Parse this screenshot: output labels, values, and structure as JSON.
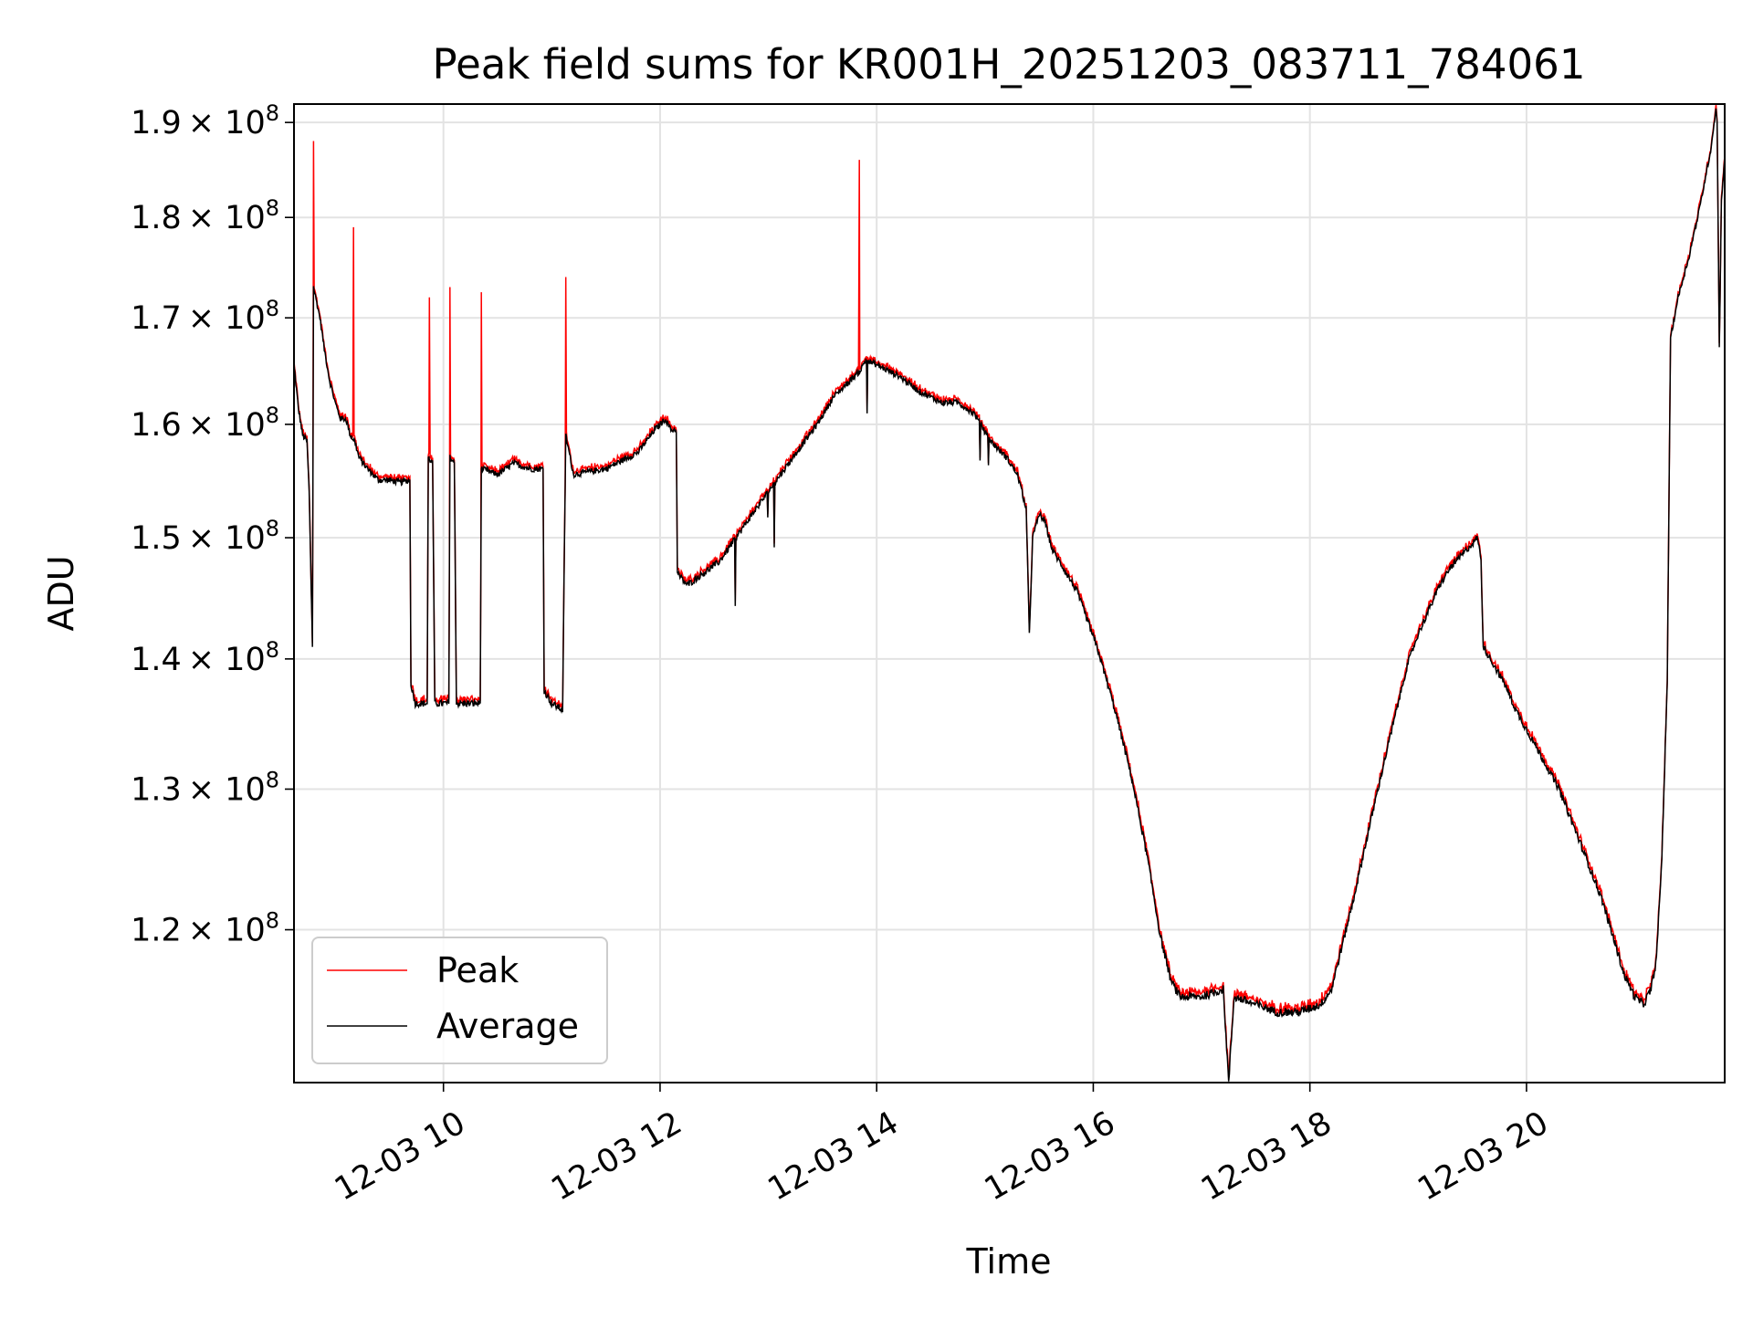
{
  "chart_data": {
    "type": "line",
    "title": "Peak field sums for KR001H_20251203_083711_784061",
    "xlabel": "Time",
    "ylabel": "ADU",
    "yscale": "log",
    "grid": true,
    "legend_position": "lower-left",
    "xlim_hours": [
      8.62,
      21.83
    ],
    "ylim": [
      110000000,
      192000000
    ],
    "x_ticks": [
      {
        "hour": 10,
        "label": "12-03 10"
      },
      {
        "hour": 12,
        "label": "12-03 12"
      },
      {
        "hour": 14,
        "label": "12-03 14"
      },
      {
        "hour": 16,
        "label": "12-03 16"
      },
      {
        "hour": 18,
        "label": "12-03 18"
      },
      {
        "hour": 20,
        "label": "12-03 20"
      }
    ],
    "y_ticks": [
      {
        "value": 120000000,
        "mantissa": "1.2",
        "exponent": "8"
      },
      {
        "value": 130000000,
        "mantissa": "1.3",
        "exponent": "8"
      },
      {
        "value": 140000000,
        "mantissa": "1.4",
        "exponent": "8"
      },
      {
        "value": 150000000,
        "mantissa": "1.5",
        "exponent": "8"
      },
      {
        "value": 160000000,
        "mantissa": "1.6",
        "exponent": "8"
      },
      {
        "value": 170000000,
        "mantissa": "1.7",
        "exponent": "8"
      },
      {
        "value": 180000000,
        "mantissa": "1.8",
        "exponent": "8"
      },
      {
        "value": 190000000,
        "mantissa": "1.9",
        "exponent": "8"
      }
    ],
    "tick_multiplier": "× 10",
    "units_scale": 1000000,
    "series": [
      {
        "name": "Peak",
        "color": "#ff0000",
        "spikes": [
          {
            "hour": 8.8,
            "value": 188
          },
          {
            "hour": 9.17,
            "value": 179
          },
          {
            "hour": 9.87,
            "value": 172
          },
          {
            "hour": 10.06,
            "value": 173
          },
          {
            "hour": 10.35,
            "value": 172.5
          },
          {
            "hour": 11.13,
            "value": 174
          },
          {
            "hour": 13.84,
            "value": 186
          }
        ]
      },
      {
        "name": "Average",
        "color": "#000000",
        "values_millions": [
          [
            8.62,
            165.5
          ],
          [
            8.66,
            161.5
          ],
          [
            8.7,
            159
          ],
          [
            8.74,
            158.5
          ],
          [
            8.76,
            154
          ],
          [
            8.79,
            141
          ],
          [
            8.8,
            173
          ],
          [
            8.86,
            170
          ],
          [
            8.9,
            167
          ],
          [
            8.95,
            164
          ],
          [
            9.0,
            162
          ],
          [
            9.05,
            160.5
          ],
          [
            9.1,
            160.5
          ],
          [
            9.14,
            159
          ],
          [
            9.18,
            158.5
          ],
          [
            9.22,
            157
          ],
          [
            9.3,
            156
          ],
          [
            9.4,
            155
          ],
          [
            9.5,
            155
          ],
          [
            9.6,
            154.8
          ],
          [
            9.69,
            155
          ],
          [
            9.7,
            138
          ],
          [
            9.74,
            136.5
          ],
          [
            9.85,
            136.5
          ],
          [
            9.86,
            157
          ],
          [
            9.9,
            156.5
          ],
          [
            9.92,
            136.5
          ],
          [
            10.05,
            136.5
          ],
          [
            10.06,
            157
          ],
          [
            10.1,
            156.5
          ],
          [
            10.12,
            136.5
          ],
          [
            10.34,
            136.5
          ],
          [
            10.35,
            156
          ],
          [
            10.5,
            155.5
          ],
          [
            10.65,
            156.5
          ],
          [
            10.8,
            156
          ],
          [
            10.92,
            156
          ],
          [
            10.93,
            137.5
          ],
          [
            11.0,
            136.5
          ],
          [
            11.1,
            136
          ],
          [
            11.13,
            159
          ],
          [
            11.2,
            155.5
          ],
          [
            11.5,
            156
          ],
          [
            11.8,
            157.5
          ],
          [
            11.95,
            159.5
          ],
          [
            12.05,
            160.5
          ],
          [
            12.1,
            159.5
          ],
          [
            12.15,
            159.5
          ],
          [
            12.16,
            147
          ],
          [
            12.25,
            146
          ],
          [
            12.4,
            147
          ],
          [
            12.55,
            148
          ],
          [
            12.7,
            150
          ],
          [
            12.85,
            152
          ],
          [
            13.0,
            154
          ],
          [
            13.15,
            156
          ],
          [
            13.3,
            158
          ],
          [
            13.45,
            160
          ],
          [
            13.6,
            162.5
          ],
          [
            13.75,
            164
          ],
          [
            13.85,
            165
          ],
          [
            13.9,
            166
          ],
          [
            14.0,
            165.5
          ],
          [
            14.2,
            164.5
          ],
          [
            14.4,
            163
          ],
          [
            14.6,
            162
          ],
          [
            14.75,
            162
          ],
          [
            14.9,
            161
          ],
          [
            15.05,
            158.5
          ],
          [
            15.2,
            157
          ],
          [
            15.3,
            155.5
          ],
          [
            15.38,
            152.5
          ],
          [
            15.41,
            142
          ],
          [
            15.44,
            150
          ],
          [
            15.5,
            152
          ],
          [
            15.55,
            151.5
          ],
          [
            15.62,
            149
          ],
          [
            15.72,
            147.5
          ],
          [
            15.85,
            145.5
          ],
          [
            15.95,
            143
          ],
          [
            16.05,
            140.5
          ],
          [
            16.2,
            136
          ],
          [
            16.35,
            131
          ],
          [
            16.5,
            125
          ],
          [
            16.62,
            119.5
          ],
          [
            16.72,
            116.5
          ],
          [
            16.8,
            115.5
          ],
          [
            17.0,
            115.5
          ],
          [
            17.2,
            116
          ],
          [
            17.25,
            110
          ],
          [
            17.3,
            115.5
          ],
          [
            17.5,
            115
          ],
          [
            17.7,
            114.5
          ],
          [
            17.9,
            114.5
          ],
          [
            18.1,
            115
          ],
          [
            18.2,
            116
          ],
          [
            18.3,
            119
          ],
          [
            18.4,
            122
          ],
          [
            18.5,
            125.5
          ],
          [
            18.6,
            129
          ],
          [
            18.7,
            132.5
          ],
          [
            18.8,
            136
          ],
          [
            18.9,
            139.5
          ],
          [
            19.0,
            142
          ],
          [
            19.1,
            144
          ],
          [
            19.2,
            146
          ],
          [
            19.3,
            147.5
          ],
          [
            19.4,
            148.5
          ],
          [
            19.5,
            149.5
          ],
          [
            19.55,
            150
          ],
          [
            19.58,
            148
          ],
          [
            19.6,
            141
          ],
          [
            19.7,
            139.5
          ],
          [
            19.8,
            138
          ],
          [
            19.9,
            136
          ],
          [
            20.0,
            134.5
          ],
          [
            20.1,
            133
          ],
          [
            20.2,
            131.5
          ],
          [
            20.3,
            130
          ],
          [
            20.4,
            128
          ],
          [
            20.5,
            126
          ],
          [
            20.6,
            124
          ],
          [
            20.7,
            122
          ],
          [
            20.8,
            119.5
          ],
          [
            20.9,
            117
          ],
          [
            21.0,
            115.5
          ],
          [
            21.08,
            115
          ],
          [
            21.15,
            116
          ],
          [
            21.2,
            118
          ],
          [
            21.25,
            125
          ],
          [
            21.3,
            138
          ],
          [
            21.33,
            168
          ],
          [
            21.4,
            172
          ],
          [
            21.5,
            176
          ],
          [
            21.6,
            181
          ],
          [
            21.7,
            187
          ],
          [
            21.75,
            191.5
          ],
          [
            21.76,
            190
          ],
          [
            21.78,
            167
          ],
          [
            21.8,
            182
          ],
          [
            21.83,
            186
          ]
        ]
      }
    ]
  }
}
